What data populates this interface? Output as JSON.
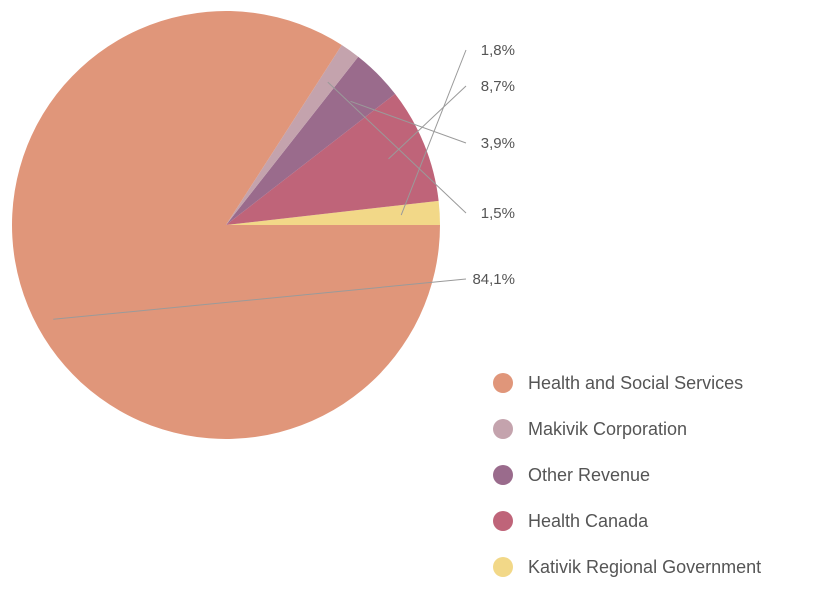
{
  "chart_data": {
    "type": "pie",
    "categories": [
      "Health and Social Services",
      "Makivik Corporation",
      "Other Revenue",
      "Health Canada",
      "Kativik Regional Government"
    ],
    "values": [
      84.1,
      1.5,
      3.9,
      8.7,
      1.8
    ],
    "value_labels": [
      "84,1%",
      "1,5%",
      "3,9%",
      "8,7%",
      "1,8%"
    ],
    "colors": [
      "#e0967a",
      "#c4a3ad",
      "#9a6b8c",
      "#bf6479",
      "#f2d888"
    ],
    "legend_position": "bottom-right"
  }
}
